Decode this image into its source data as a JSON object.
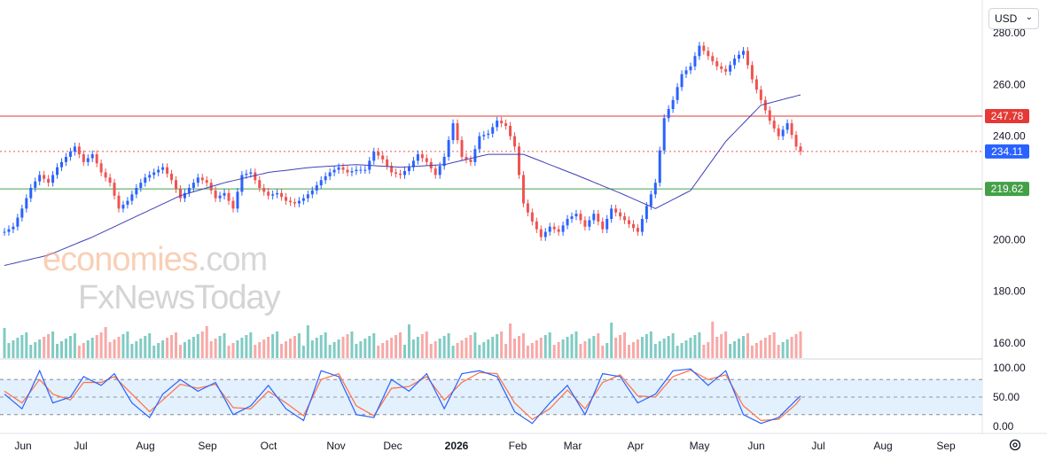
{
  "currency": {
    "label": "USD"
  },
  "watermark": {
    "line1_main": "economies",
    "line1_suffix": ".com",
    "line2": "FxNewsToday"
  },
  "colors": {
    "up": "#2962ff",
    "down": "#ef5350",
    "ma": "#3f3fb8",
    "res": "#e53935",
    "sup": "#43a047",
    "stoch_k": "#2962ff",
    "stoch_d": "#ff7043",
    "band": "#e3f0fd"
  },
  "chart_data": {
    "type": "candlestick",
    "x_ticks": [
      "Jun",
      "Jul",
      "Aug",
      "Sep",
      "Oct",
      "Nov",
      "Dec",
      "2026",
      "Feb",
      "Mar",
      "Apr",
      "May",
      "Jun",
      "Jul",
      "Aug",
      "Sep"
    ],
    "price_axis": {
      "min": 155,
      "max": 282,
      "ticks": [
        "260.00",
        "240.00",
        "200.00",
        "180.00",
        "160.00"
      ],
      "top_tick": "280.00"
    },
    "levels": [
      {
        "name": "resistance",
        "value": 247.78,
        "label": "247.78"
      },
      {
        "name": "last",
        "value": 234.11,
        "label": "234.11"
      },
      {
        "name": "support",
        "value": 219.62,
        "label": "219.62"
      }
    ],
    "close_path": [
      [
        0,
        203
      ],
      [
        2,
        205
      ],
      [
        4,
        212
      ],
      [
        6,
        220
      ],
      [
        8,
        225
      ],
      [
        10,
        222
      ],
      [
        12,
        228
      ],
      [
        14,
        232
      ],
      [
        16,
        236
      ],
      [
        18,
        230
      ],
      [
        20,
        233
      ],
      [
        22,
        226
      ],
      [
        24,
        222
      ],
      [
        26,
        212
      ],
      [
        28,
        215
      ],
      [
        30,
        220
      ],
      [
        32,
        224
      ],
      [
        34,
        226
      ],
      [
        36,
        228
      ],
      [
        38,
        223
      ],
      [
        40,
        216
      ],
      [
        42,
        220
      ],
      [
        44,
        224
      ],
      [
        46,
        222
      ],
      [
        48,
        216
      ],
      [
        50,
        218
      ],
      [
        52,
        212
      ],
      [
        54,
        225
      ],
      [
        56,
        226
      ],
      [
        58,
        220
      ],
      [
        60,
        217
      ],
      [
        62,
        218
      ],
      [
        64,
        215
      ],
      [
        66,
        214
      ],
      [
        68,
        216
      ],
      [
        70,
        219
      ],
      [
        72,
        223
      ],
      [
        74,
        226
      ],
      [
        76,
        228
      ],
      [
        78,
        226
      ],
      [
        80,
        227
      ],
      [
        82,
        227
      ],
      [
        84,
        234
      ],
      [
        86,
        231
      ],
      [
        88,
        226
      ],
      [
        90,
        225
      ],
      [
        92,
        228
      ],
      [
        94,
        233
      ],
      [
        96,
        230
      ],
      [
        98,
        225
      ],
      [
        100,
        232
      ],
      [
        102,
        245
      ],
      [
        104,
        232
      ],
      [
        106,
        230
      ],
      [
        108,
        240
      ],
      [
        110,
        241
      ],
      [
        112,
        246
      ],
      [
        114,
        244
      ],
      [
        116,
        236
      ],
      [
        118,
        214
      ],
      [
        120,
        207
      ],
      [
        122,
        201
      ],
      [
        124,
        205
      ],
      [
        126,
        203
      ],
      [
        128,
        208
      ],
      [
        130,
        210
      ],
      [
        132,
        205
      ],
      [
        134,
        210
      ],
      [
        136,
        204
      ],
      [
        138,
        212
      ],
      [
        140,
        209
      ],
      [
        142,
        206
      ],
      [
        144,
        203
      ],
      [
        146,
        213
      ],
      [
        148,
        222
      ],
      [
        150,
        247
      ],
      [
        152,
        254
      ],
      [
        154,
        264
      ],
      [
        156,
        267
      ],
      [
        158,
        275
      ],
      [
        160,
        271
      ],
      [
        162,
        267
      ],
      [
        164,
        265
      ],
      [
        166,
        270
      ],
      [
        168,
        273
      ],
      [
        170,
        262
      ],
      [
        172,
        254
      ],
      [
        174,
        246
      ],
      [
        176,
        240
      ],
      [
        178,
        245
      ],
      [
        180,
        236
      ],
      [
        181,
        234.11
      ]
    ],
    "ma_path": [
      [
        0,
        190
      ],
      [
        10,
        194
      ],
      [
        20,
        201
      ],
      [
        30,
        209
      ],
      [
        40,
        217
      ],
      [
        50,
        222
      ],
      [
        60,
        226
      ],
      [
        70,
        228
      ],
      [
        80,
        229
      ],
      [
        90,
        228
      ],
      [
        100,
        229
      ],
      [
        110,
        233
      ],
      [
        118,
        233
      ],
      [
        130,
        225
      ],
      [
        140,
        218
      ],
      [
        148,
        212
      ],
      [
        156,
        219
      ],
      [
        164,
        238
      ],
      [
        172,
        252
      ],
      [
        181,
        256
      ]
    ],
    "stochastic": {
      "axis": [
        "100.00",
        "50.00",
        "0.00"
      ],
      "upper": 80,
      "lower": 20,
      "k_path": [
        [
          0,
          55
        ],
        [
          4,
          30
        ],
        [
          8,
          95
        ],
        [
          11,
          40
        ],
        [
          15,
          50
        ],
        [
          18,
          85
        ],
        [
          22,
          70
        ],
        [
          25,
          90
        ],
        [
          29,
          40
        ],
        [
          33,
          15
        ],
        [
          36,
          55
        ],
        [
          40,
          80
        ],
        [
          44,
          60
        ],
        [
          48,
          75
        ],
        [
          52,
          20
        ],
        [
          56,
          35
        ],
        [
          60,
          70
        ],
        [
          64,
          30
        ],
        [
          68,
          10
        ],
        [
          72,
          95
        ],
        [
          76,
          85
        ],
        [
          80,
          20
        ],
        [
          84,
          15
        ],
        [
          88,
          80
        ],
        [
          92,
          60
        ],
        [
          96,
          90
        ],
        [
          100,
          30
        ],
        [
          104,
          90
        ],
        [
          108,
          95
        ],
        [
          112,
          85
        ],
        [
          116,
          25
        ],
        [
          120,
          5
        ],
        [
          124,
          40
        ],
        [
          128,
          70
        ],
        [
          132,
          20
        ],
        [
          136,
          90
        ],
        [
          140,
          85
        ],
        [
          144,
          40
        ],
        [
          148,
          55
        ],
        [
          152,
          95
        ],
        [
          156,
          98
        ],
        [
          160,
          70
        ],
        [
          164,
          95
        ],
        [
          168,
          20
        ],
        [
          172,
          5
        ],
        [
          176,
          15
        ],
        [
          180,
          45
        ],
        [
          181,
          52
        ]
      ],
      "d_path": [
        [
          0,
          60
        ],
        [
          4,
          40
        ],
        [
          8,
          80
        ],
        [
          11,
          55
        ],
        [
          15,
          45
        ],
        [
          18,
          75
        ],
        [
          22,
          75
        ],
        [
          25,
          85
        ],
        [
          29,
          55
        ],
        [
          33,
          25
        ],
        [
          36,
          45
        ],
        [
          40,
          72
        ],
        [
          44,
          65
        ],
        [
          48,
          72
        ],
        [
          52,
          32
        ],
        [
          56,
          30
        ],
        [
          60,
          60
        ],
        [
          64,
          40
        ],
        [
          68,
          18
        ],
        [
          72,
          80
        ],
        [
          76,
          90
        ],
        [
          80,
          35
        ],
        [
          84,
          18
        ],
        [
          88,
          65
        ],
        [
          92,
          68
        ],
        [
          96,
          85
        ],
        [
          100,
          45
        ],
        [
          104,
          75
        ],
        [
          108,
          92
        ],
        [
          112,
          90
        ],
        [
          116,
          40
        ],
        [
          120,
          12
        ],
        [
          124,
          30
        ],
        [
          128,
          62
        ],
        [
          132,
          30
        ],
        [
          136,
          75
        ],
        [
          140,
          88
        ],
        [
          144,
          52
        ],
        [
          148,
          50
        ],
        [
          152,
          85
        ],
        [
          156,
          96
        ],
        [
          160,
          80
        ],
        [
          164,
          88
        ],
        [
          168,
          35
        ],
        [
          172,
          10
        ],
        [
          176,
          12
        ],
        [
          180,
          38
        ],
        [
          181,
          48
        ]
      ]
    }
  }
}
